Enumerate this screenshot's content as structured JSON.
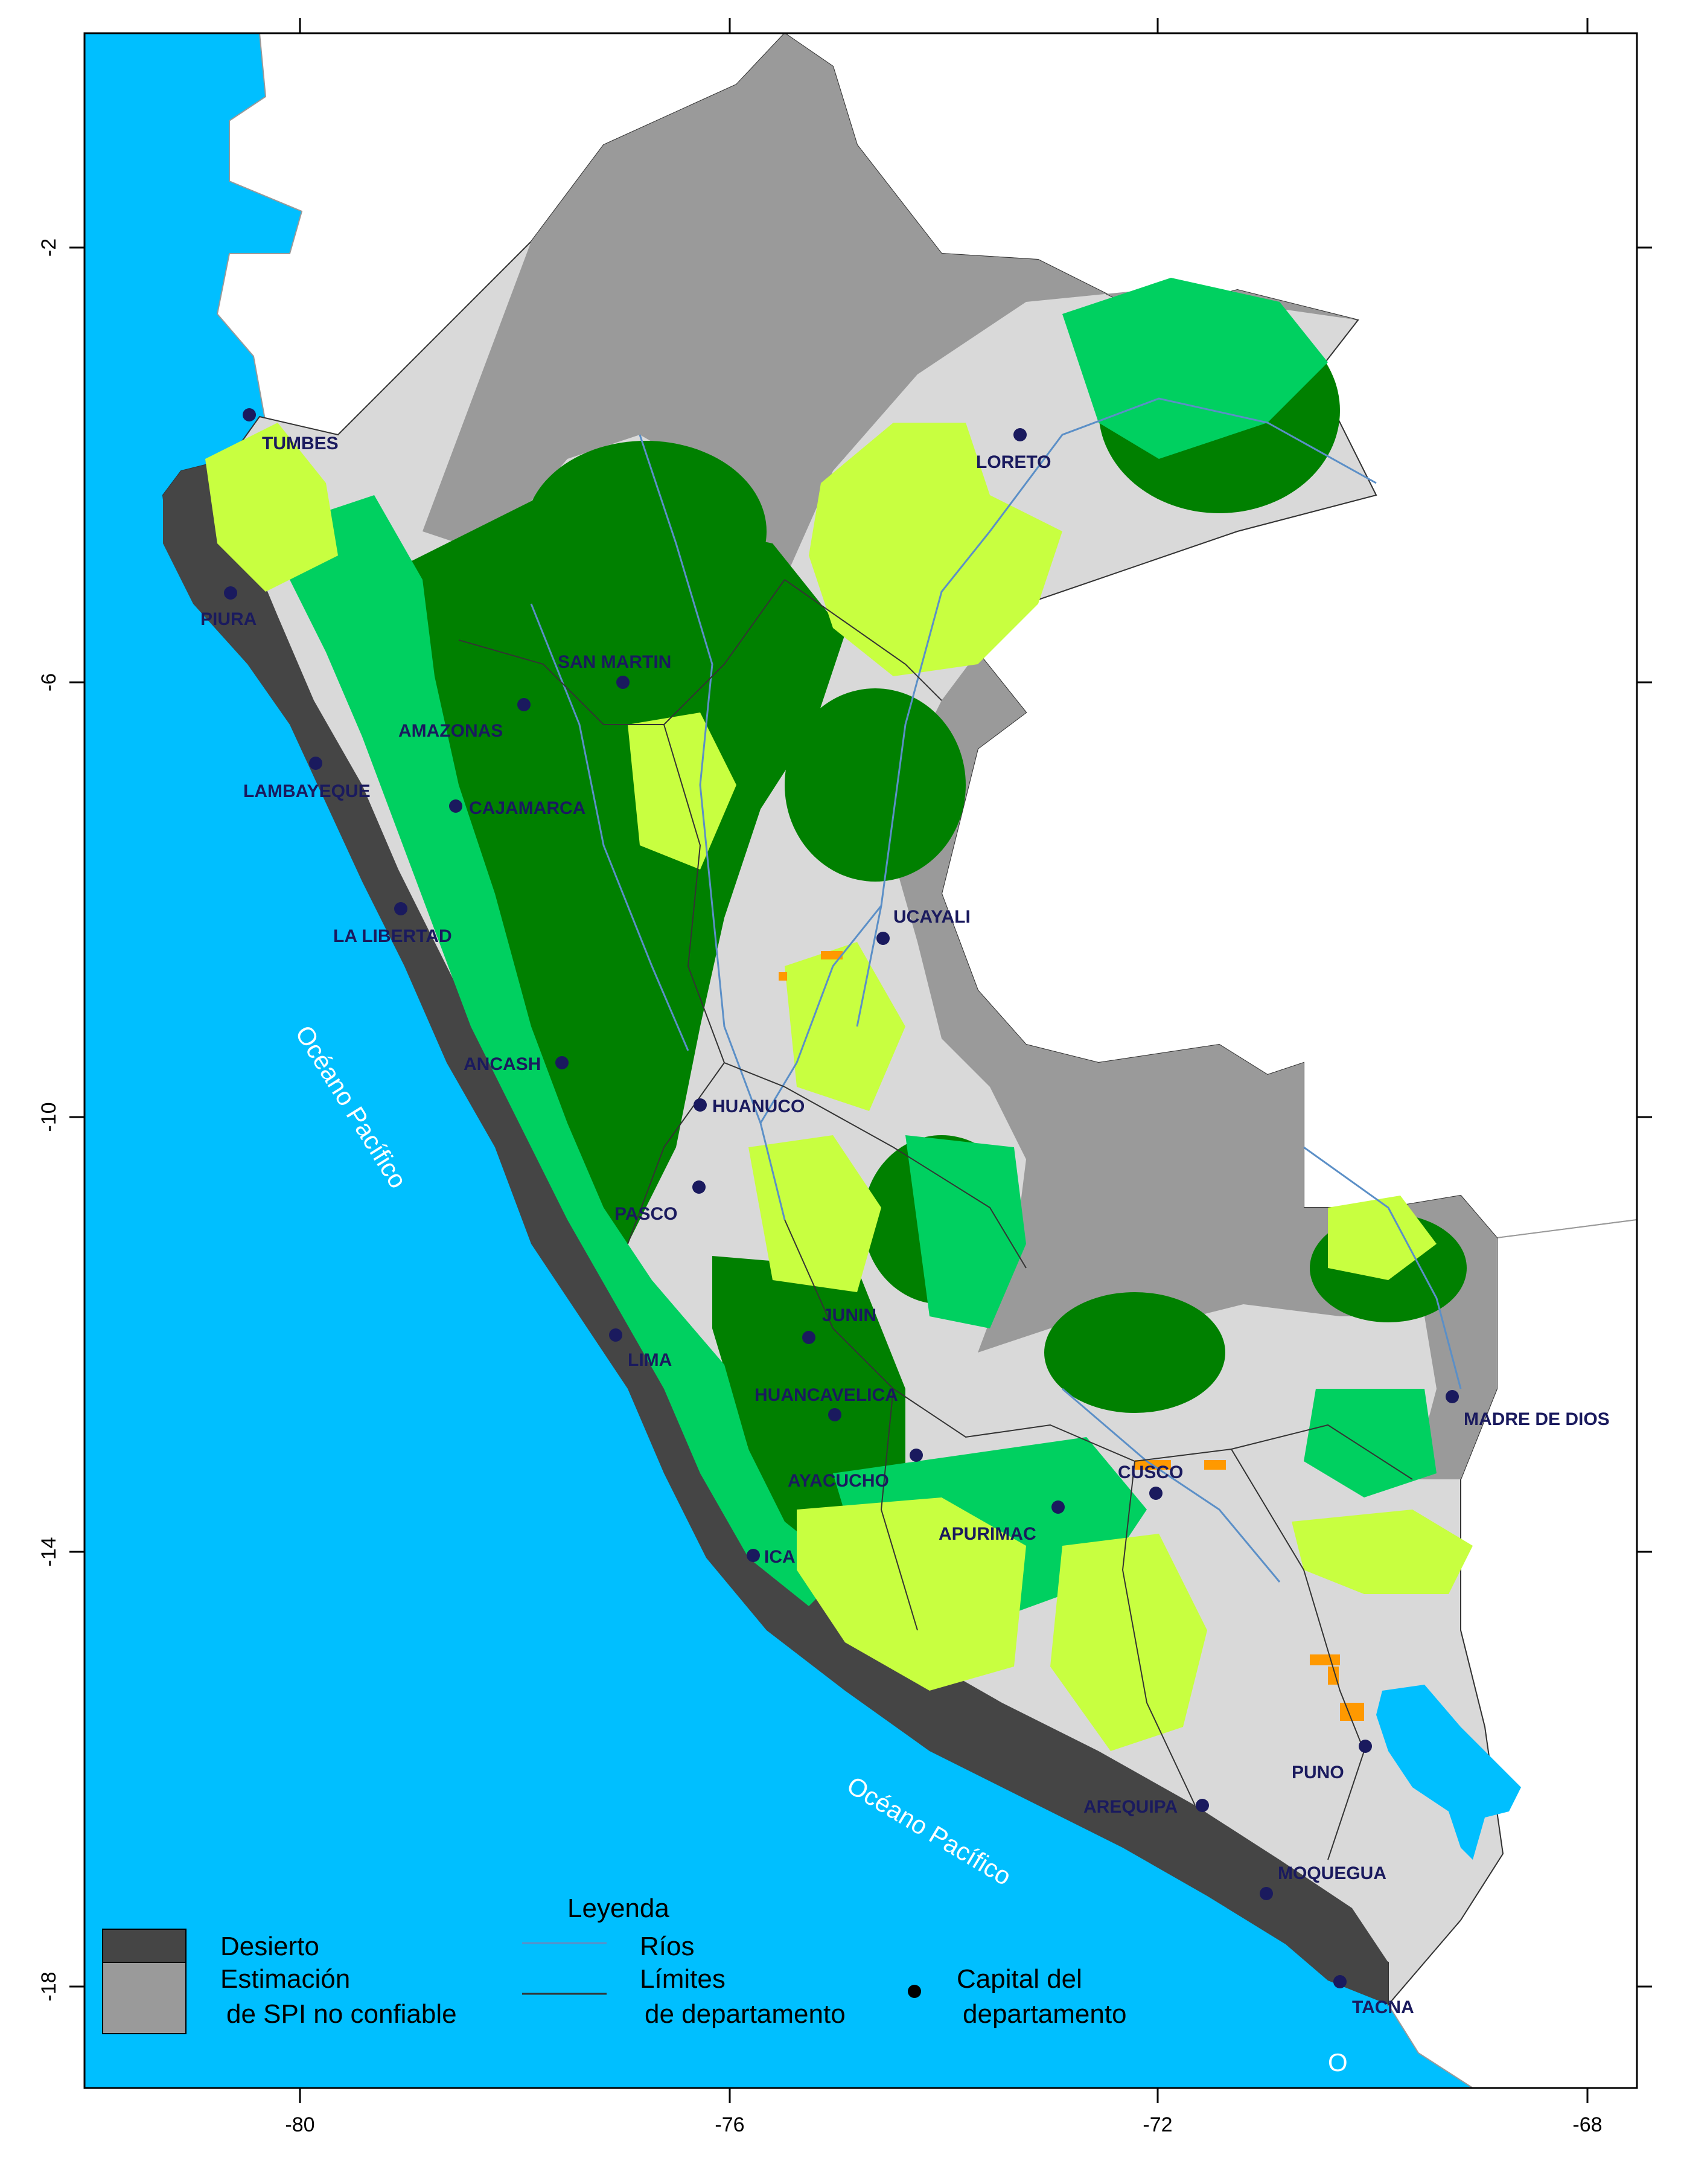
{
  "map": {
    "x_ticks": [
      "-80",
      "-76",
      "-72",
      "-68"
    ],
    "y_ticks": [
      "-2",
      "-6",
      "-10",
      "-14",
      "-18"
    ],
    "ocean_labels": [
      "Océano Pacífico",
      "Océano Pacífico"
    ],
    "ocean_label_partial": "O",
    "departments": [
      {
        "name": "TUMBES"
      },
      {
        "name": "PIURA"
      },
      {
        "name": "LORETO"
      },
      {
        "name": "SAN MARTIN"
      },
      {
        "name": "AMAZONAS"
      },
      {
        "name": "LAMBAYEQUE"
      },
      {
        "name": "CAJAMARCA"
      },
      {
        "name": "LA LIBERTAD"
      },
      {
        "name": "UCAYALI"
      },
      {
        "name": "ANCASH"
      },
      {
        "name": "HUANUCO"
      },
      {
        "name": "PASCO"
      },
      {
        "name": "JUNIN"
      },
      {
        "name": "LIMA"
      },
      {
        "name": "HUANCAVELICA"
      },
      {
        "name": "MADRE DE DIOS"
      },
      {
        "name": "AYACUCHO"
      },
      {
        "name": "CUSCO"
      },
      {
        "name": "APURIMAC"
      },
      {
        "name": "ICA"
      },
      {
        "name": "PUNO"
      },
      {
        "name": "AREQUIPA"
      },
      {
        "name": "MOQUEGUA"
      },
      {
        "name": "TACNA"
      }
    ],
    "colors": {
      "ocean": "#00bfff",
      "desert": "#454545",
      "unreliable": "#9a9a9a",
      "light_gray": "#d9d9d9",
      "dark_green": "#008000",
      "medium_green": "#00d060",
      "light_green": "#c8ff40",
      "orange": "#ff9900",
      "capital": "#1a1a5e"
    }
  },
  "legend": {
    "title": "Leyenda",
    "desert": "Desierto",
    "unreliable_line1": "Estimación",
    "unreliable_line2": "de SPI no confiable",
    "rivers": "Ríos",
    "limits_line1": "Límites",
    "limits_line2": "de departamento",
    "capital_line1": "Capital del",
    "capital_line2": "departamento"
  }
}
